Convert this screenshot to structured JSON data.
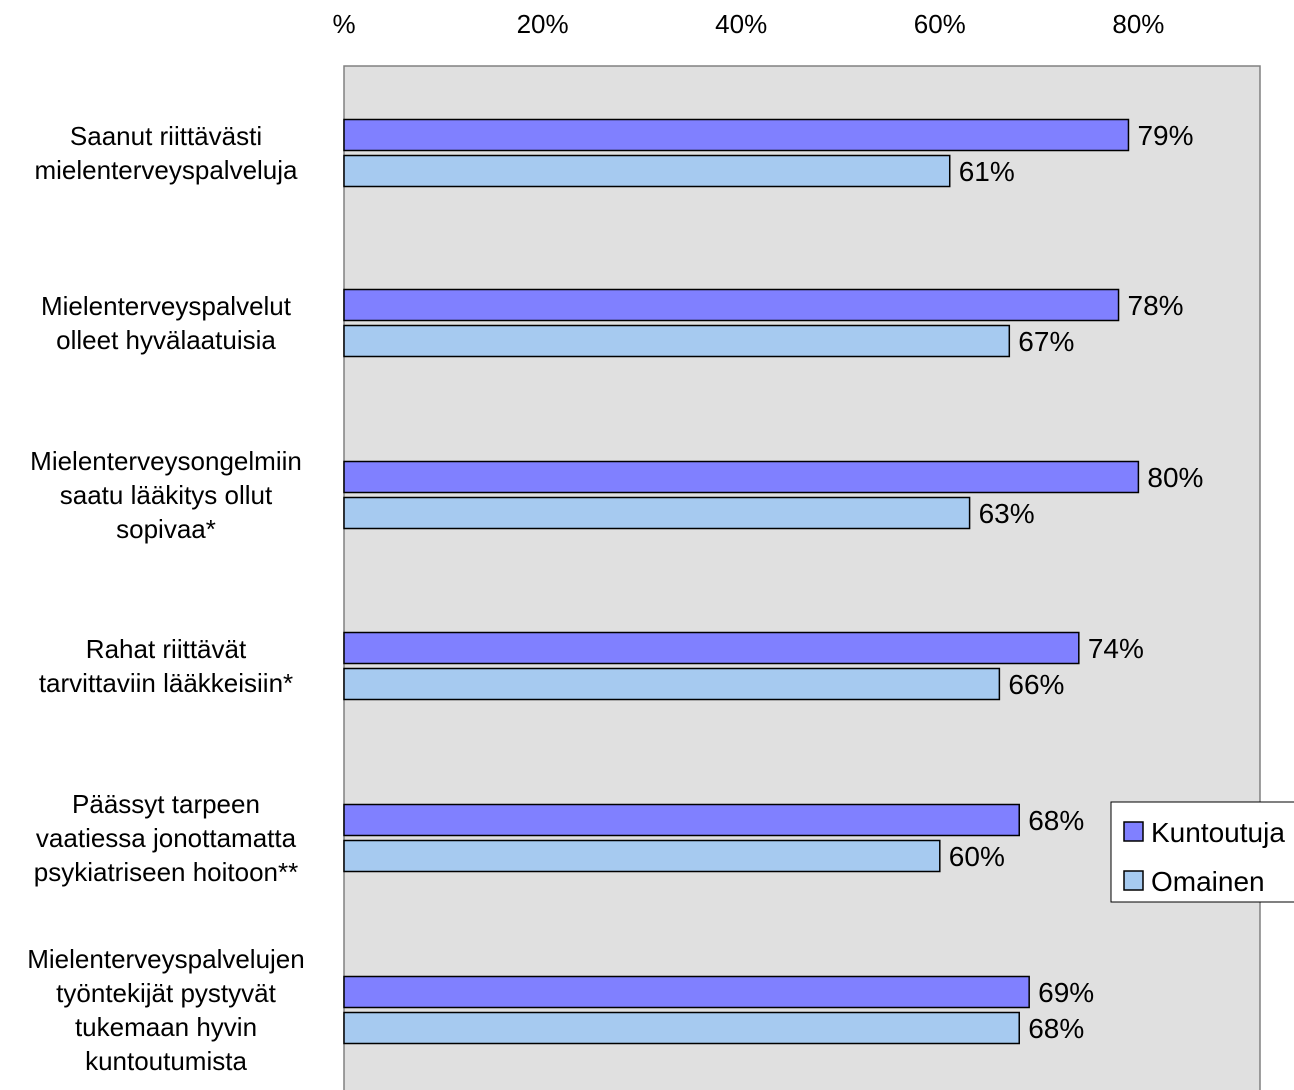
{
  "chart_data": {
    "type": "bar",
    "orientation": "horizontal",
    "title": "",
    "xlabel": "",
    "ylabel": "",
    "x_ticks": [
      "%",
      "20%",
      "40%",
      "60%",
      "80%"
    ],
    "xlim": [
      0,
      92
    ],
    "grid": false,
    "legend_position": "right",
    "categories": [
      [
        "Saanut riittävästi",
        "mielenterveyspalveluja"
      ],
      [
        "Mielenterveyspalvelut",
        "olleet hyvälaatuisia"
      ],
      [
        "Mielenterveysongelmiin",
        "saatu lääkitys ollut",
        "sopivaa*"
      ],
      [
        "Rahat riittävät",
        "tarvittaviin lääkkeisiin*"
      ],
      [
        "Päässyt tarpeen",
        "vaatiessa jonottamatta",
        "psykiatriseen hoitoon**"
      ],
      [
        "Mielenterveyspalvelujen",
        "työntekijät pystyvät",
        "tukemaan hyvin",
        "kuntoutumista"
      ]
    ],
    "series": [
      {
        "name": "Kuntoutuja",
        "color": "#8080ff",
        "values": [
          79,
          78,
          80,
          74,
          68,
          69
        ],
        "labels": [
          "79%",
          "78%",
          "80%",
          "74%",
          "68%",
          "69%"
        ]
      },
      {
        "name": "Omainen",
        "color": "#a6caf0",
        "values": [
          61,
          67,
          63,
          66,
          60,
          68
        ],
        "labels": [
          "61%",
          "67%",
          "63%",
          "66%",
          "60%",
          "68%"
        ]
      }
    ],
    "plot_background": "#e0e0e0"
  }
}
